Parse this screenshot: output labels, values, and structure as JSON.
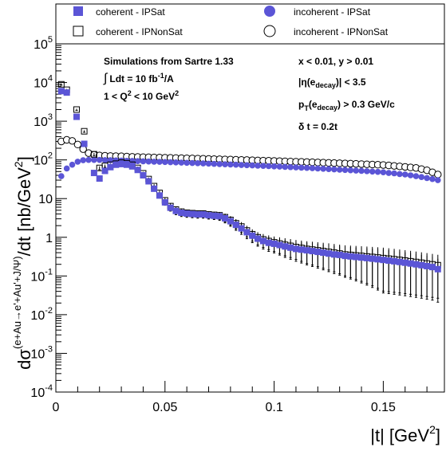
{
  "chart_data": {
    "type": "scatter",
    "x_axis": {
      "label": "|t| [GeV",
      "label_sup": "2",
      "label_end": "]",
      "range": [
        0,
        0.178
      ],
      "ticks": [
        {
          "v": 0,
          "label": "0"
        },
        {
          "v": 0.05,
          "label": "0.05"
        },
        {
          "v": 0.1,
          "label": "0.1"
        },
        {
          "v": 0.15,
          "label": "0.15"
        }
      ]
    },
    "y_axis": {
      "label_prefix": "dσ",
      "label_sup": "(e+Au→e'+Au'+J/Ψ)",
      "label_suffix": "/dt  [nb/GeV",
      "label_sup2": "2",
      "label_end": "]",
      "scale": "log",
      "range": [
        0.0001,
        100000
      ],
      "ticks": [
        {
          "v": 0.0001,
          "base": "10",
          "exp": "-4"
        },
        {
          "v": 0.001,
          "base": "10",
          "exp": "-3"
        },
        {
          "v": 0.01,
          "base": "10",
          "exp": "-2"
        },
        {
          "v": 0.1,
          "base": "10",
          "exp": "-1"
        },
        {
          "v": 1,
          "base": "1",
          "exp": ""
        },
        {
          "v": 10,
          "base": "10",
          "exp": ""
        },
        {
          "v": 100,
          "base": "10",
          "exp": "2"
        },
        {
          "v": 1000,
          "base": "10",
          "exp": "3"
        },
        {
          "v": 10000,
          "base": "10",
          "exp": "4"
        },
        {
          "v": 100000,
          "base": "10",
          "exp": "5"
        }
      ]
    },
    "legend": {
      "placement": "top",
      "entries": [
        {
          "label": "coherent - IPSat",
          "marker": "filled-square"
        },
        {
          "label": "incoherent - IPSat",
          "marker": "filled-circle"
        },
        {
          "label": "coherent - IPNonSat",
          "marker": "open-square"
        },
        {
          "label": "incoherent - IPNonSat",
          "marker": "open-circle"
        }
      ]
    },
    "annotations": {
      "left": {
        "line1": "Simulations from Sartre 1.33",
        "line2_integral": "∫",
        "line2_text": "Ldt = 10 fb",
        "line2_sup": "-1",
        "line2_tail": "/A",
        "line3_a": "1 < Q",
        "line3_sup": "2",
        "line3_b": " < 10 GeV",
        "line3_sup2": "2"
      },
      "right": {
        "line1": "x < 0.01,  y > 0.01",
        "line2_a": "|η(e",
        "line2_sub": "decay",
        "line2_b": ")| < 3.5",
        "line3_a": "p",
        "line3_sub": "T",
        "line3_b": "(e",
        "line3_sub2": "decay",
        "line3_c": ") > 0.3 GeV/c",
        "line4": "δ t = 0.2t"
      }
    },
    "colors": {
      "ipsat": "#5b55d6",
      "nonsat": "#000000",
      "axis": "#000000"
    },
    "series": [
      {
        "name": "coherent - IPSat",
        "marker": "filled-square",
        "x": [
          0.0025,
          0.005,
          0.0095,
          0.013,
          0.0175,
          0.02,
          0.0225,
          0.025,
          0.0275,
          0.03,
          0.0325,
          0.035,
          0.0375,
          0.04,
          0.0425,
          0.045,
          0.0475,
          0.05,
          0.0525,
          0.055,
          0.0575,
          0.06,
          0.0625,
          0.065,
          0.0675,
          0.07,
          0.0725,
          0.075,
          0.0775,
          0.08,
          0.0825,
          0.085,
          0.0875,
          0.09,
          0.0925,
          0.095,
          0.0975,
          0.1,
          0.1025,
          0.105,
          0.1075,
          0.11,
          0.1125,
          0.115,
          0.1175,
          0.12,
          0.1225,
          0.125,
          0.1275,
          0.13,
          0.1325,
          0.135,
          0.1375,
          0.14,
          0.1425,
          0.145,
          0.1475,
          0.15,
          0.1525,
          0.155,
          0.1575,
          0.16,
          0.1625,
          0.165,
          0.1675,
          0.17,
          0.1725,
          0.175
        ],
        "y": [
          6000,
          5500,
          1300,
          260,
          46,
          33,
          52,
          65,
          75,
          78,
          75,
          68,
          55,
          40,
          28,
          18,
          12,
          8,
          5.8,
          4.8,
          4.3,
          4.1,
          4.0,
          3.9,
          3.9,
          3.7,
          3.6,
          3.5,
          3.1,
          2.6,
          2.1,
          1.7,
          1.35,
          1.1,
          0.92,
          0.8,
          0.72,
          0.68,
          0.63,
          0.58,
          0.54,
          0.5,
          0.48,
          0.46,
          0.44,
          0.42,
          0.4,
          0.38,
          0.36,
          0.35,
          0.33,
          0.32,
          0.31,
          0.3,
          0.29,
          0.28,
          0.27,
          0.26,
          0.25,
          0.24,
          0.23,
          0.22,
          0.21,
          0.2,
          0.19,
          0.18,
          0.17,
          0.15
        ],
        "err_rel": [
          0.05,
          0.05,
          0.05,
          0.06,
          0.08,
          0.1,
          0.08,
          0.07,
          0.07,
          0.07,
          0.07,
          0.07,
          0.08,
          0.09,
          0.1,
          0.12,
          0.14,
          0.16,
          0.18,
          0.2,
          0.2,
          0.2,
          0.2,
          0.2,
          0.2,
          0.2,
          0.2,
          0.22,
          0.24,
          0.26,
          0.28,
          0.3,
          0.32,
          0.34,
          0.36,
          0.38,
          0.4,
          0.42,
          0.45,
          0.48,
          0.5,
          0.52,
          0.55,
          0.58,
          0.6,
          0.62,
          0.64,
          0.66,
          0.68,
          0.7,
          0.72,
          0.74,
          0.76,
          0.78,
          0.8,
          0.82,
          0.84,
          0.86,
          0.86,
          0.86,
          0.86,
          0.86,
          0.86,
          0.86,
          0.86,
          0.86,
          0.86,
          0.86
        ]
      },
      {
        "name": "coherent - IPNonSat",
        "marker": "open-square",
        "x": [
          0.0025,
          0.005,
          0.0095,
          0.013,
          0.0175,
          0.02,
          0.0225,
          0.025,
          0.0275,
          0.03,
          0.0325,
          0.035,
          0.0375,
          0.04,
          0.0425,
          0.045,
          0.0475,
          0.05,
          0.0525,
          0.055,
          0.0575,
          0.06,
          0.0625,
          0.065,
          0.0675,
          0.07,
          0.0725,
          0.075,
          0.0775,
          0.08,
          0.0825,
          0.085,
          0.0875,
          0.09,
          0.0925,
          0.095,
          0.0975,
          0.1,
          0.1025,
          0.105,
          0.1075,
          0.11,
          0.1125,
          0.115,
          0.1175,
          0.12,
          0.1225,
          0.125,
          0.1275,
          0.13,
          0.1325,
          0.135,
          0.1375,
          0.14,
          0.1425,
          0.145,
          0.1475,
          0.15,
          0.1525,
          0.155,
          0.1575,
          0.16,
          0.1625,
          0.165,
          0.1675,
          0.17,
          0.1725,
          0.175
        ],
        "y": [
          9000,
          6500,
          2000,
          550,
          140,
          62,
          70,
          75,
          80,
          85,
          82,
          75,
          62,
          45,
          32,
          21,
          14,
          9,
          6.4,
          5.2,
          4.6,
          4.3,
          4.2,
          4.1,
          4.1,
          3.9,
          3.8,
          3.7,
          3.3,
          2.8,
          2.3,
          1.9,
          1.5,
          1.2,
          1.0,
          0.88,
          0.8,
          0.74,
          0.69,
          0.64,
          0.6,
          0.56,
          0.53,
          0.5,
          0.48,
          0.46,
          0.44,
          0.42,
          0.4,
          0.38,
          0.36,
          0.35,
          0.34,
          0.33,
          0.32,
          0.31,
          0.3,
          0.29,
          0.28,
          0.27,
          0.26,
          0.25,
          0.24,
          0.23,
          0.22,
          0.21,
          0.2,
          0.19
        ],
        "err_rel": [
          0.05,
          0.05,
          0.05,
          0.06,
          0.08,
          0.1,
          0.08,
          0.07,
          0.07,
          0.07,
          0.07,
          0.07,
          0.08,
          0.09,
          0.1,
          0.12,
          0.14,
          0.16,
          0.18,
          0.2,
          0.2,
          0.2,
          0.2,
          0.2,
          0.2,
          0.2,
          0.2,
          0.22,
          0.24,
          0.26,
          0.28,
          0.3,
          0.32,
          0.34,
          0.36,
          0.38,
          0.4,
          0.42,
          0.45,
          0.48,
          0.5,
          0.52,
          0.55,
          0.58,
          0.6,
          0.62,
          0.64,
          0.66,
          0.68,
          0.7,
          0.72,
          0.74,
          0.76,
          0.78,
          0.8,
          0.82,
          0.84,
          0.86,
          0.86,
          0.86,
          0.86,
          0.86,
          0.86,
          0.86,
          0.86,
          0.86,
          0.86,
          0.86
        ]
      },
      {
        "name": "incoherent - IPSat",
        "marker": "filled-circle",
        "x": [
          0.0025,
          0.005,
          0.0075,
          0.01,
          0.0125,
          0.015,
          0.0175,
          0.02,
          0.0225,
          0.025,
          0.0275,
          0.03,
          0.0325,
          0.035,
          0.0375,
          0.04,
          0.0425,
          0.045,
          0.0475,
          0.05,
          0.0525,
          0.055,
          0.0575,
          0.06,
          0.0625,
          0.065,
          0.0675,
          0.07,
          0.0725,
          0.075,
          0.0775,
          0.08,
          0.0825,
          0.085,
          0.0875,
          0.09,
          0.0925,
          0.095,
          0.0975,
          0.1,
          0.1025,
          0.105,
          0.1075,
          0.11,
          0.1125,
          0.115,
          0.1175,
          0.12,
          0.1225,
          0.125,
          0.1275,
          0.13,
          0.1325,
          0.135,
          0.1375,
          0.14,
          0.1425,
          0.145,
          0.1475,
          0.15,
          0.1525,
          0.155,
          0.1575,
          0.16,
          0.1625,
          0.165,
          0.1675,
          0.17,
          0.1725,
          0.175
        ],
        "y": [
          38,
          60,
          75,
          90,
          98,
          100,
          100,
          100,
          99,
          98,
          97,
          96,
          95,
          94,
          93,
          92,
          91,
          90,
          89,
          88,
          87,
          86,
          85,
          84,
          83,
          82,
          81,
          80,
          79,
          78,
          77,
          76,
          75,
          74,
          73,
          72,
          71,
          70,
          69,
          68,
          67,
          66,
          65,
          64,
          63,
          62,
          61,
          60,
          59,
          58,
          57,
          56,
          55,
          54,
          53,
          52,
          51,
          50,
          49,
          48,
          46,
          45,
          43,
          42,
          40,
          38,
          36,
          34,
          32,
          30
        ],
        "err_rel": []
      },
      {
        "name": "incoherent - IPNonSat",
        "marker": "open-circle",
        "x": [
          0.0025,
          0.005,
          0.0075,
          0.01,
          0.0125,
          0.015,
          0.0175,
          0.02,
          0.0225,
          0.025,
          0.0275,
          0.03,
          0.0325,
          0.035,
          0.0375,
          0.04,
          0.0425,
          0.045,
          0.0475,
          0.05,
          0.0525,
          0.055,
          0.0575,
          0.06,
          0.0625,
          0.065,
          0.0675,
          0.07,
          0.0725,
          0.075,
          0.0775,
          0.08,
          0.0825,
          0.085,
          0.0875,
          0.09,
          0.0925,
          0.095,
          0.0975,
          0.1,
          0.1025,
          0.105,
          0.1075,
          0.11,
          0.1125,
          0.115,
          0.1175,
          0.12,
          0.1225,
          0.125,
          0.1275,
          0.13,
          0.1325,
          0.135,
          0.1375,
          0.14,
          0.1425,
          0.145,
          0.1475,
          0.15,
          0.1525,
          0.155,
          0.1575,
          0.16,
          0.1625,
          0.165,
          0.1675,
          0.17,
          0.1725,
          0.175
        ],
        "y": [
          300,
          330,
          310,
          250,
          190,
          150,
          135,
          130,
          128,
          126,
          125,
          124,
          122,
          120,
          119,
          118,
          117,
          116,
          115,
          114,
          113,
          112,
          111,
          110,
          109,
          108,
          107,
          106,
          105,
          104,
          103,
          102,
          101,
          100,
          99,
          98,
          97,
          96,
          95,
          94,
          93,
          92,
          91,
          90,
          89,
          88,
          87,
          86,
          85,
          84,
          83,
          82,
          81,
          80,
          79,
          78,
          77,
          76,
          75,
          74,
          72,
          70,
          68,
          66,
          64,
          62,
          58,
          54,
          48,
          42
        ],
        "err_rel": []
      }
    ]
  }
}
